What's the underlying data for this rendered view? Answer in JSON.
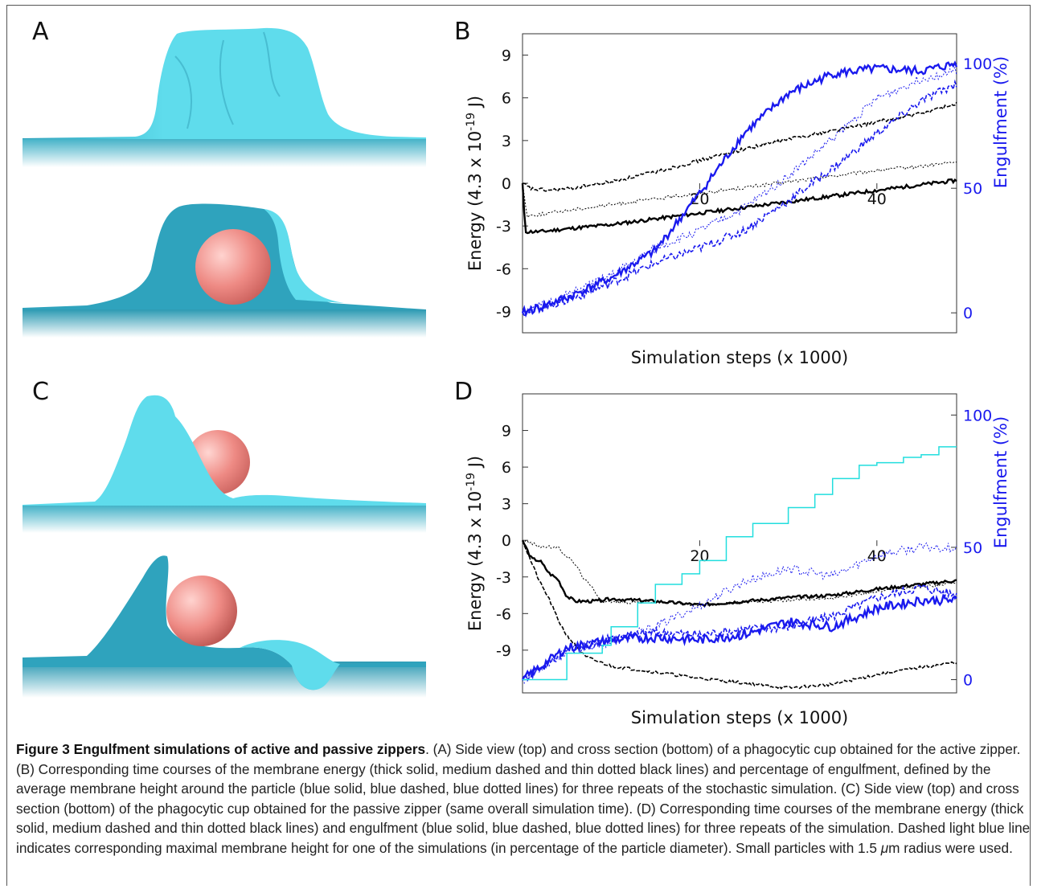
{
  "panels": {
    "a": {
      "letter": "A"
    },
    "b": {
      "letter": "B"
    },
    "c": {
      "letter": "C"
    },
    "d": {
      "letter": "D"
    }
  },
  "colors": {
    "membrane_light": "#5fdcec",
    "membrane_dark": "#2fa3bd",
    "membrane_base": "#4cb8cc",
    "particle": "#ee8a84",
    "energy": "#000000",
    "engulfment": "#1a1aee",
    "max_height": "#22dede"
  },
  "chart_data": [
    {
      "panel": "B",
      "type": "line",
      "xlabel": "Simulation steps (x 1000)",
      "ylabel": "Energy (4.3 x 10-19 J)",
      "ylabel_parts": {
        "pre": "Energy (4.3 x 10",
        "sup": "-19",
        "post": " J)"
      },
      "y2label": "Engulfment (%)",
      "xlim": [
        0,
        49
      ],
      "ylim": [
        -10.5,
        10.5
      ],
      "y2lim": [
        -8,
        112
      ],
      "x_ticks": [
        20,
        40
      ],
      "y_ticks": [
        9,
        6,
        3,
        0,
        -3,
        -6,
        -9
      ],
      "y2_ticks": [
        100,
        50,
        0
      ],
      "energy_series": [
        {
          "style": "thick solid",
          "x": [
            0,
            0.3,
            2,
            5,
            10,
            15,
            20,
            25,
            30,
            35,
            40,
            45,
            49
          ],
          "values": [
            0,
            -3.4,
            -3.4,
            -3.2,
            -2.9,
            -2.5,
            -2.1,
            -1.7,
            -1.3,
            -0.9,
            -0.5,
            -0.1,
            0.2
          ]
        },
        {
          "style": "medium dashed",
          "x": [
            0,
            1,
            3,
            5,
            10,
            15,
            20,
            25,
            30,
            35,
            40,
            45,
            49
          ],
          "values": [
            0,
            -0.4,
            -0.5,
            -0.4,
            0.1,
            0.8,
            1.6,
            2.4,
            3.1,
            3.7,
            4.3,
            4.9,
            5.6
          ]
        },
        {
          "style": "thin dotted",
          "x": [
            0,
            0.5,
            3,
            5,
            10,
            15,
            20,
            25,
            30,
            35,
            40,
            45,
            49
          ],
          "values": [
            0,
            -2.3,
            -2.1,
            -1.9,
            -1.5,
            -1.1,
            -0.7,
            -0.3,
            0.1,
            0.5,
            0.9,
            1.2,
            1.5
          ]
        }
      ],
      "engulfment_series": [
        {
          "style": "blue solid",
          "x": [
            0,
            5,
            10,
            15,
            20,
            25,
            30,
            35,
            40,
            45,
            49
          ],
          "values": [
            0,
            6,
            14,
            25,
            48,
            72,
            88,
            96,
            98,
            97,
            100
          ]
        },
        {
          "style": "blue dashed",
          "x": [
            0,
            5,
            10,
            15,
            20,
            25,
            30,
            35,
            40,
            45,
            49
          ],
          "values": [
            0,
            5,
            12,
            20,
            26,
            33,
            45,
            58,
            72,
            85,
            92
          ]
        },
        {
          "style": "blue dotted",
          "x": [
            0,
            5,
            10,
            15,
            20,
            25,
            30,
            35,
            40,
            45,
            49
          ],
          "values": [
            0,
            7,
            15,
            26,
            33,
            42,
            55,
            70,
            86,
            94,
            97
          ]
        }
      ]
    },
    {
      "panel": "D",
      "type": "line",
      "xlabel": "Simulation steps (x 1000)",
      "ylabel": "Energy (4.3 x 10-19 J)",
      "ylabel_parts": {
        "pre": "Energy (4.3 x 10",
        "sup": "-19",
        "post": " J)"
      },
      "y2label": "Engulfment (%)",
      "xlim": [
        0,
        49
      ],
      "ylim": [
        -12.5,
        12
      ],
      "y2lim": [
        -5,
        108
      ],
      "x_ticks": [
        20,
        40
      ],
      "y_ticks": [
        9,
        6,
        3,
        0,
        -3,
        -6,
        -9
      ],
      "y2_ticks": [
        100,
        50,
        0
      ],
      "energy_series": [
        {
          "style": "thick solid",
          "x": [
            0,
            1,
            2,
            3,
            4,
            5,
            6,
            8,
            10,
            15,
            20,
            25,
            30,
            35,
            40,
            45,
            49
          ],
          "values": [
            0,
            -1.5,
            -1.7,
            -2.7,
            -3.2,
            -4.6,
            -5.0,
            -5.0,
            -4.8,
            -5.0,
            -5.3,
            -5.0,
            -4.7,
            -4.5,
            -4.0,
            -3.6,
            -3.3
          ]
        },
        {
          "style": "medium dashed",
          "x": [
            0,
            1,
            2,
            3,
            4,
            5,
            6,
            7,
            8,
            10,
            15,
            20,
            25,
            30,
            35,
            40,
            45,
            49
          ],
          "values": [
            0,
            -1.8,
            -3.5,
            -4.8,
            -6.5,
            -7.8,
            -8.6,
            -9.5,
            -9.8,
            -10.3,
            -10.8,
            -11.3,
            -11.7,
            -12.1,
            -11.8,
            -11.0,
            -10.4,
            -10.0
          ]
        },
        {
          "style": "thin dotted",
          "x": [
            0,
            2,
            4,
            6,
            7,
            8,
            9,
            12,
            15,
            20,
            25,
            30,
            35,
            40,
            45,
            49
          ],
          "values": [
            0,
            -0.5,
            -0.6,
            -2.0,
            -3.2,
            -4.0,
            -5.0,
            -5.1,
            -5.0,
            -5.3,
            -5.1,
            -4.9,
            -4.7,
            -4.2,
            -3.8,
            -3.5
          ]
        }
      ],
      "engulfment_series": [
        {
          "style": "blue solid",
          "x": [
            0,
            5,
            10,
            15,
            20,
            25,
            30,
            35,
            40,
            45,
            49
          ],
          "values": [
            0,
            12,
            15,
            16,
            15,
            17,
            22,
            20,
            27,
            30,
            30
          ]
        },
        {
          "style": "blue dashed",
          "x": [
            0,
            5,
            10,
            15,
            20,
            25,
            30,
            35,
            40,
            45,
            49
          ],
          "values": [
            0,
            11,
            16,
            18,
            17,
            19,
            20,
            24,
            31,
            35,
            32
          ]
        },
        {
          "style": "blue dotted",
          "x": [
            0,
            5,
            10,
            15,
            20,
            25,
            30,
            35,
            40,
            45,
            49
          ],
          "values": [
            0,
            11,
            14,
            20,
            28,
            37,
            42,
            39,
            47,
            50,
            50
          ]
        }
      ],
      "max_height_series": {
        "style": "dashed light blue",
        "x": [
          0,
          5,
          9,
          10,
          13,
          15,
          18,
          20,
          23,
          26,
          30,
          33,
          35,
          38,
          40,
          43,
          45,
          47,
          49
        ],
        "values": [
          0,
          10,
          13,
          20,
          29,
          36,
          40,
          45,
          54,
          59,
          65,
          70,
          76,
          81,
          82,
          84,
          85,
          88,
          88
        ]
      }
    }
  ],
  "caption": {
    "label": "Figure 3 Engulfment simulations of active and passive zippers",
    "pre_mu": ". (A) Side view (top) and cross section (bottom) of a phagocytic cup obtained for the active zipper. (B) Corresponding time courses of the membrane energy (thick solid, medium dashed and thin dotted black lines) and percentage of engulfment, defined by the average membrane height around the particle (blue solid, blue dashed, blue dotted lines) for three repeats of the stochastic simulation. (C) Side view (top) and cross section (bottom) of the phagocytic cup obtained for the passive zipper (same overall simulation time). (D) Corresponding time courses of the membrane energy (thick solid, medium dashed and thin dotted black lines) and engulfment (blue solid, blue dashed, blue dotted lines) for three repeats of the simulation. Dashed light blue line indicates corresponding maximal membrane height for one of the simulations (in percentage of the particle diameter). Small particles with 1.5 ",
    "mu": "μ",
    "post_mu": "m radius were used."
  }
}
